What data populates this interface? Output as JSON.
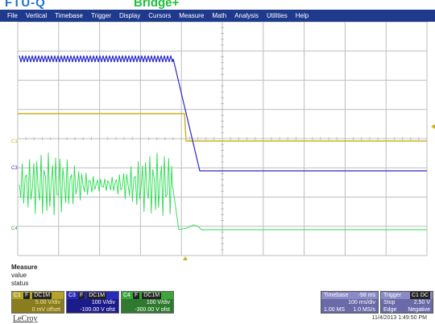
{
  "caption": {
    "left": "FTU-Q",
    "right": "Bridge+"
  },
  "menu": [
    "File",
    "Vertical",
    "Timebase",
    "Trigger",
    "Display",
    "Cursors",
    "Measure",
    "Math",
    "Analysis",
    "Utilities",
    "Help"
  ],
  "traces": {
    "c1_color": "#c8b41e",
    "c3_color": "#2828c8",
    "c4_color": "#2adc50",
    "grid_color": "#bdbdbd",
    "c1_label": "C1",
    "c3_label": "C3",
    "c4_label": "C4"
  },
  "measure": {
    "title": "Measure",
    "value": "value",
    "status": "status"
  },
  "channels": {
    "c1": {
      "tag": "C1",
      "sub1": "F",
      "sub2": "DC1M",
      "vdiv": "5.00 V/div",
      "offset": "0 mV offset"
    },
    "c3": {
      "tag": "C3",
      "sub1": "F",
      "sub2": "DC1M",
      "vdiv": "100 V/div",
      "offset": "-100.00 V ofst"
    },
    "c4": {
      "tag": "C4",
      "sub1": "F",
      "sub2": "DC1M",
      "vdiv": "100 V/div",
      "offset": "-300.00 V ofst"
    }
  },
  "timebase": {
    "label": "Timebase",
    "delay": "-98 ms",
    "tdiv": "100 ms/div",
    "samples": "1.00 MS",
    "rate": "1.0 MS/s"
  },
  "trigger": {
    "label": "Trigger",
    "tag": "C1 DC",
    "mode": "Stop",
    "level": "2.50 V",
    "type": "Edge",
    "slope": "Negative"
  },
  "logo": "LeCroy",
  "datetime": "11/4/2013 1:49:50 PM"
}
